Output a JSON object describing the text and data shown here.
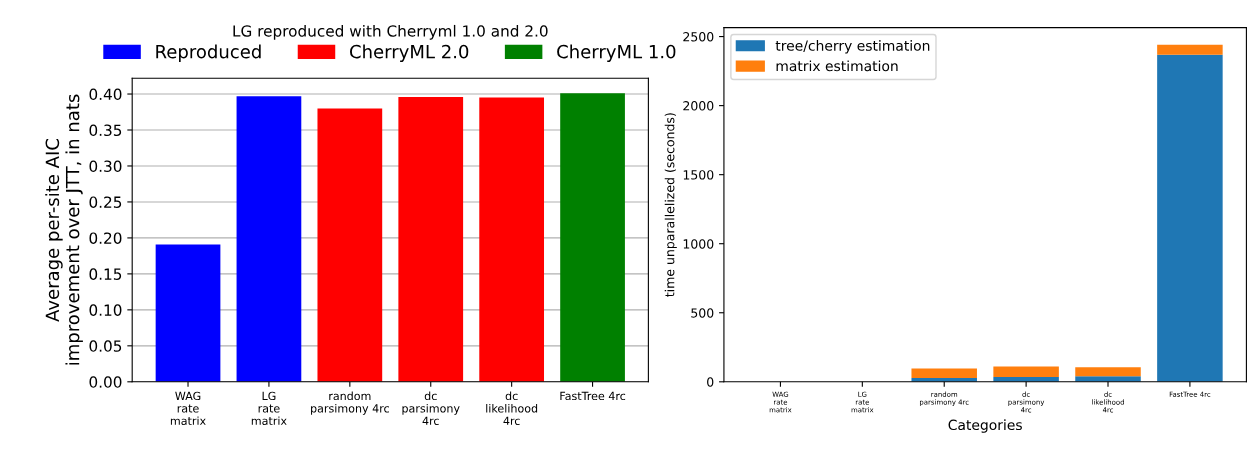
{
  "chart_data": [
    {
      "type": "bar",
      "title": "LG reproduced with Cherryml 1.0 and 2.0",
      "ylabel": "Average per-site AIC\nimprovement over JTT, in nats",
      "categories": [
        "WAG\nrate\nmatrix",
        "LG\nrate\nmatrix",
        "random\nparsimony 4rc",
        "dc\nparsimony\n4rc",
        "dc\nlikelihood\n4rc",
        "FastTree 4rc"
      ],
      "series": [
        {
          "name": "Reproduced",
          "color": "#0000ff",
          "values": [
            0.191,
            0.397,
            null,
            null,
            null,
            null
          ]
        },
        {
          "name": "CherryML 2.0",
          "color": "#ff0000",
          "values": [
            null,
            null,
            0.38,
            0.396,
            0.395,
            null
          ]
        },
        {
          "name": "CherryML 1.0",
          "color": "#008000",
          "values": [
            null,
            null,
            null,
            null,
            null,
            0.401
          ]
        }
      ],
      "ylim": [
        0,
        0.422
      ],
      "yticks": [
        {
          "value": 0,
          "label": "0.00"
        },
        {
          "value": 0.05,
          "label": "0.05"
        },
        {
          "value": 0.1,
          "label": "0.10"
        },
        {
          "value": 0.15,
          "label": "0.15"
        },
        {
          "value": 0.2,
          "label": "0.20"
        },
        {
          "value": 0.25,
          "label": "0.25"
        },
        {
          "value": 0.3,
          "label": "0.30"
        },
        {
          "value": 0.35,
          "label": "0.35"
        },
        {
          "value": 0.4,
          "label": "0.40"
        }
      ],
      "grid": "y",
      "legend": "top"
    },
    {
      "type": "bar",
      "xlabel": "Categories",
      "ylabel": "time unparallelized (seconds)",
      "stacked": true,
      "categories": [
        "WAG\nrate\nmatrix",
        "LG\nrate\nmatrix",
        "random\nparsimony 4rc",
        "dc\nparsimony\n4rc",
        "dc\nlikelihood\n4rc",
        "FastTree 4rc"
      ],
      "series": [
        {
          "name": "tree/cherry estimation",
          "color": "#1f77b4",
          "values": [
            0,
            0,
            27,
            34,
            40,
            2369
          ]
        },
        {
          "name": "matrix estimation",
          "color": "#ff7f0e",
          "values": [
            0,
            0,
            69,
            76,
            65,
            72
          ]
        }
      ],
      "ylim": [
        0,
        2565
      ],
      "yticks": [
        0,
        500,
        1000,
        1500,
        2000,
        2500
      ],
      "legend": "top left"
    }
  ]
}
